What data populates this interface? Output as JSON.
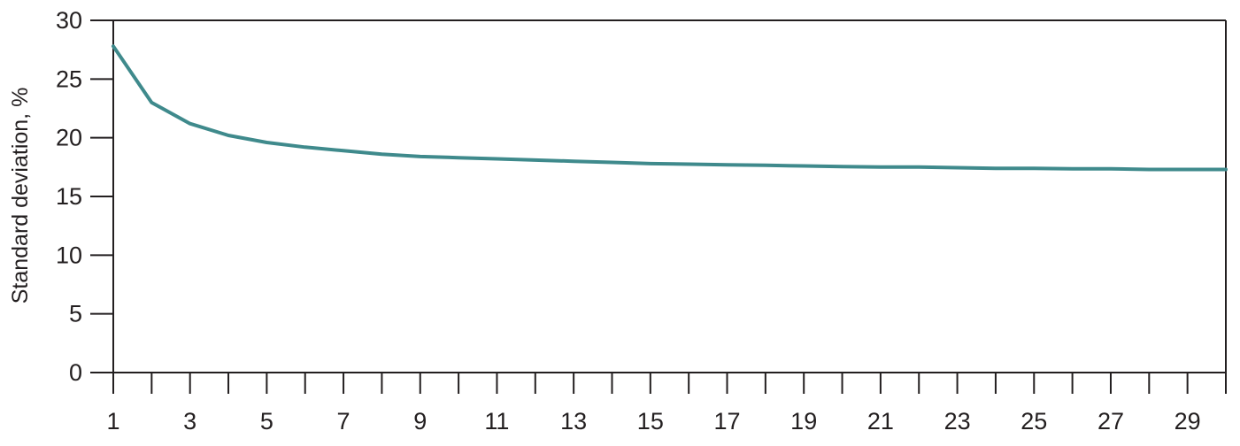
{
  "chart_data": {
    "type": "line",
    "title": "",
    "xlabel": "",
    "ylabel": "Standard deviation, %",
    "xlim": [
      1,
      30
    ],
    "ylim": [
      0,
      30
    ],
    "x_tick_labels": [
      1,
      3,
      5,
      7,
      9,
      11,
      13,
      15,
      17,
      19,
      21,
      23,
      25,
      27,
      29
    ],
    "x_minor_ticks": [
      2,
      4,
      6,
      8,
      10,
      12,
      14,
      16,
      18,
      20,
      22,
      24,
      26,
      28,
      30
    ],
    "y_ticks": [
      0,
      5,
      10,
      15,
      20,
      25,
      30
    ],
    "grid": false,
    "legend": "none",
    "color": "#3f8a8c",
    "series": [
      {
        "x": [
          1,
          2,
          3,
          4,
          5,
          6,
          7,
          8,
          9,
          10,
          11,
          12,
          13,
          14,
          15,
          16,
          17,
          18,
          19,
          20,
          21,
          22,
          23,
          24,
          25,
          26,
          27,
          28,
          29,
          30
        ],
        "values": [
          27.8,
          23.0,
          21.2,
          20.2,
          19.6,
          19.2,
          18.9,
          18.6,
          18.4,
          18.3,
          18.2,
          18.1,
          18.0,
          17.9,
          17.8,
          17.75,
          17.7,
          17.65,
          17.6,
          17.55,
          17.5,
          17.5,
          17.45,
          17.4,
          17.4,
          17.35,
          17.35,
          17.3,
          17.3,
          17.3
        ]
      }
    ]
  }
}
